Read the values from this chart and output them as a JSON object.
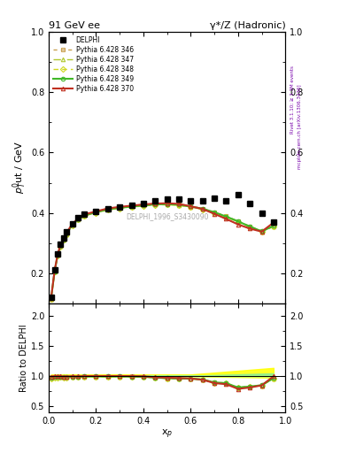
{
  "title_left": "91 GeV ee",
  "title_right": "γ*/Z (Hadronic)",
  "ylabel_main": "$p^0_T$ut / GeV",
  "ylabel_ratio": "Ratio to DELPHI",
  "xlabel": "x$_p$",
  "watermark": "DELPHI_1996_S3430090",
  "right_label_top": "Rivet 3.1.10; ≥ 3.3M events",
  "right_label_bot": "mcplots.cern.ch [arXiv:1306.3436]",
  "ylim_main": [
    0.1,
    1.0
  ],
  "ylim_ratio": [
    0.4,
    2.2
  ],
  "yticks_main": [
    0.2,
    0.4,
    0.6,
    0.8,
    1.0
  ],
  "yticks_ratio": [
    0.5,
    1.0,
    1.5,
    2.0
  ],
  "delphi_x": [
    0.01,
    0.025,
    0.038,
    0.05,
    0.063,
    0.075,
    0.1,
    0.125,
    0.15,
    0.2,
    0.25,
    0.3,
    0.35,
    0.4,
    0.45,
    0.5,
    0.55,
    0.6,
    0.65,
    0.7,
    0.75,
    0.8,
    0.85,
    0.9,
    0.95
  ],
  "delphi_y": [
    0.12,
    0.21,
    0.265,
    0.295,
    0.318,
    0.337,
    0.365,
    0.385,
    0.395,
    0.405,
    0.415,
    0.42,
    0.425,
    0.43,
    0.44,
    0.445,
    0.445,
    0.44,
    0.44,
    0.45,
    0.44,
    0.46,
    0.43,
    0.4,
    0.37
  ],
  "delphi_yerr": [
    0.005,
    0.005,
    0.005,
    0.005,
    0.005,
    0.005,
    0.005,
    0.005,
    0.005,
    0.005,
    0.005,
    0.005,
    0.005,
    0.005,
    0.005,
    0.005,
    0.005,
    0.005,
    0.005,
    0.005,
    0.005,
    0.005,
    0.005,
    0.005,
    0.005
  ],
  "p346_y": [
    0.118,
    0.208,
    0.262,
    0.292,
    0.313,
    0.332,
    0.362,
    0.38,
    0.393,
    0.403,
    0.413,
    0.418,
    0.422,
    0.426,
    0.429,
    0.43,
    0.428,
    0.422,
    0.415,
    0.403,
    0.389,
    0.373,
    0.356,
    0.34,
    0.358
  ],
  "p347_y": [
    0.116,
    0.206,
    0.26,
    0.29,
    0.311,
    0.33,
    0.36,
    0.378,
    0.391,
    0.401,
    0.411,
    0.416,
    0.42,
    0.424,
    0.427,
    0.428,
    0.426,
    0.42,
    0.413,
    0.401,
    0.387,
    0.371,
    0.354,
    0.338,
    0.356
  ],
  "p348_y": [
    0.115,
    0.205,
    0.259,
    0.289,
    0.31,
    0.329,
    0.359,
    0.377,
    0.39,
    0.4,
    0.41,
    0.415,
    0.419,
    0.423,
    0.426,
    0.427,
    0.425,
    0.419,
    0.412,
    0.4,
    0.386,
    0.37,
    0.353,
    0.337,
    0.355
  ],
  "p349_y": [
    0.117,
    0.207,
    0.261,
    0.291,
    0.312,
    0.331,
    0.361,
    0.379,
    0.392,
    0.402,
    0.412,
    0.417,
    0.421,
    0.425,
    0.428,
    0.429,
    0.427,
    0.421,
    0.414,
    0.402,
    0.388,
    0.372,
    0.355,
    0.339,
    0.357
  ],
  "p370_y": [
    0.118,
    0.21,
    0.264,
    0.294,
    0.315,
    0.334,
    0.364,
    0.382,
    0.395,
    0.405,
    0.415,
    0.42,
    0.424,
    0.428,
    0.431,
    0.432,
    0.43,
    0.422,
    0.413,
    0.397,
    0.38,
    0.362,
    0.348,
    0.338,
    0.368
  ],
  "color_346": "#c8a050",
  "color_347": "#b0c830",
  "color_348": "#d0d820",
  "color_349": "#40b828",
  "color_370": "#c03020",
  "color_delphi": "#000000"
}
